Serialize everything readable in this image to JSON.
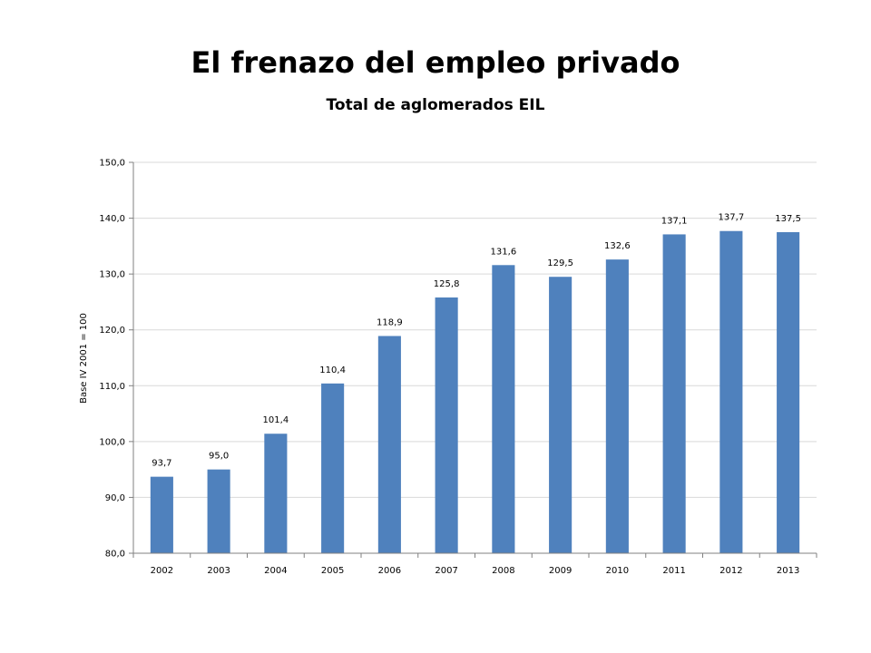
{
  "title": "El frenazo del empleo privado",
  "subtitle": "Total de aglomerados EIL",
  "colors": {
    "bar": "#4F81BD",
    "grid": "#D9D9D9",
    "axis": "#808080"
  },
  "chart_data": {
    "type": "bar",
    "title": "El frenazo del empleo privado",
    "subtitle": "Total de aglomerados EIL",
    "xlabel": "",
    "ylabel": "Base IV 2001 = 100",
    "categories": [
      "2002",
      "2003",
      "2004",
      "2005",
      "2006",
      "2007",
      "2008",
      "2009",
      "2010",
      "2011",
      "2012",
      "2013"
    ],
    "values": [
      93.7,
      95.0,
      101.4,
      110.4,
      118.9,
      125.8,
      131.6,
      129.5,
      132.6,
      137.1,
      137.7,
      137.5
    ],
    "data_labels": [
      "93,7",
      "95,0",
      "101,4",
      "110,4",
      "118,9",
      "125,8",
      "131,6",
      "129,5",
      "132,6",
      "137,1",
      "137,7",
      "137,5"
    ],
    "ylim": [
      80,
      150
    ],
    "yticks": [
      80,
      90,
      100,
      110,
      120,
      130,
      140,
      150
    ],
    "ytick_labels": [
      "80,0",
      "90,0",
      "100,0",
      "110,0",
      "120,0",
      "130,0",
      "140,0",
      "150,0"
    ],
    "grid": true,
    "legend": "none"
  }
}
